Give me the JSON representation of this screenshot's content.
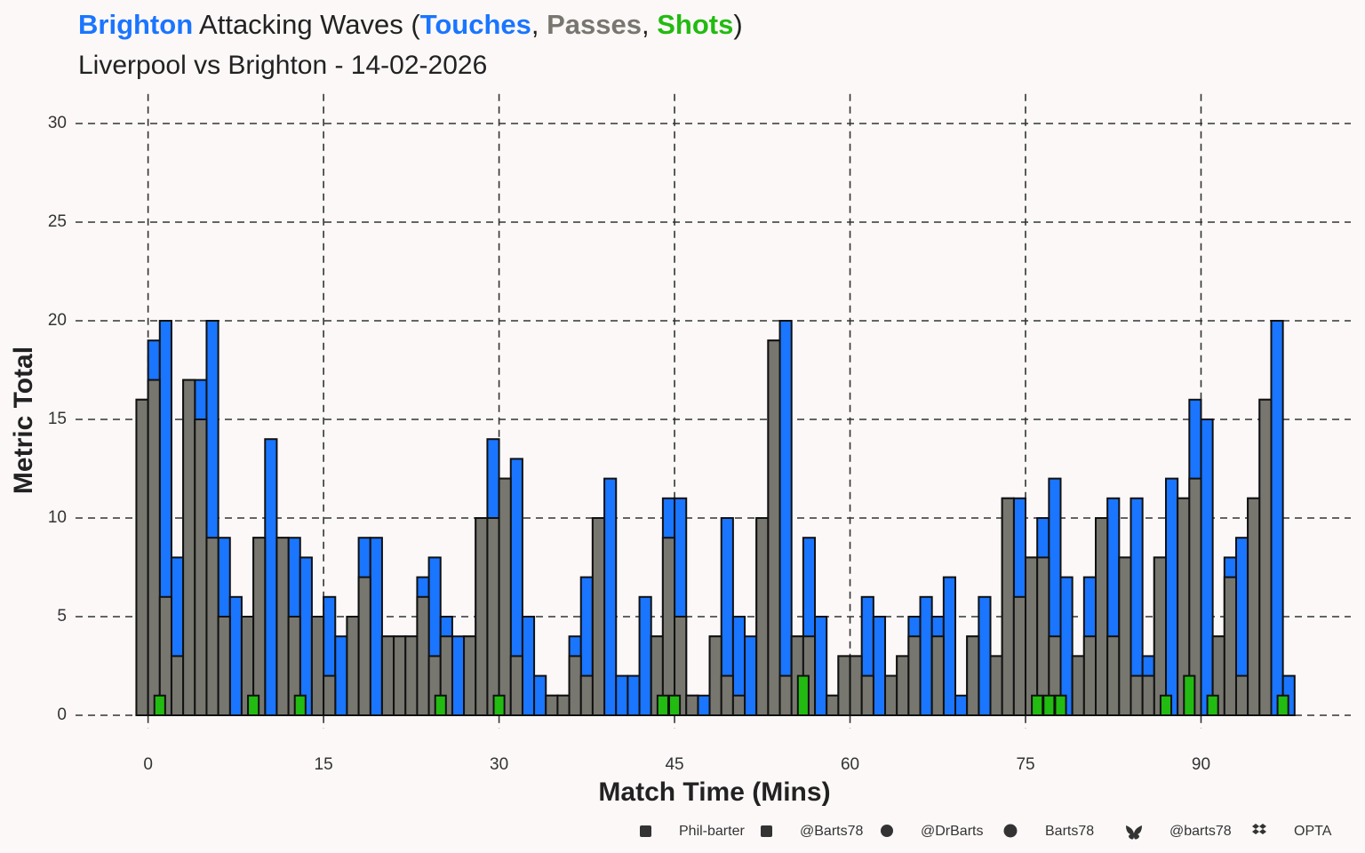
{
  "chart_data": {
    "type": "bar",
    "title": {
      "team": "Brighton",
      "team_color": "#1a75ff",
      "middle": " Attacking Waves (",
      "sep": ", ",
      "close": ")"
    },
    "subtitle": "Liverpool vs Brighton - 14-02-2026",
    "x_label": "Match Time (Mins)",
    "y_label": "Metric Total",
    "xlim": [
      -6.2,
      102.8
    ],
    "xticks": [
      0,
      15,
      30,
      45,
      60,
      75,
      90
    ],
    "ylim": [
      -1.5,
      31.5
    ],
    "yticks": [
      0,
      5,
      10,
      15,
      20,
      25,
      30
    ],
    "grid": true,
    "series": [
      {
        "name": "Touches",
        "color": "#1a75ff",
        "x": [
          -0.5,
          0.5,
          1.5,
          2.5,
          3.5,
          4.5,
          5.5,
          6.5,
          7.5,
          8.5,
          9.5,
          10.5,
          11.5,
          12.5,
          13.5,
          14.5,
          15.5,
          16.5,
          17.5,
          18.5,
          19.5,
          20.5,
          21.5,
          22.5,
          23.5,
          24.5,
          25.5,
          26.5,
          27.5,
          28.5,
          29.5,
          30.5,
          31.5,
          32.5,
          33.5,
          34.5,
          35.5,
          36.5,
          37.5,
          38.5,
          39.5,
          40.5,
          41.5,
          42.5,
          43.5,
          44.5,
          45.5,
          46.5,
          47.5,
          48.5,
          49.5,
          50.5,
          51.5,
          52.5,
          53.5,
          54.5,
          55.5,
          56.5,
          57.5,
          58.5,
          59.5,
          60.5,
          61.5,
          62.5,
          63.5,
          64.5,
          65.5,
          66.5,
          67.5,
          68.5,
          69.5,
          70.5,
          71.5,
          72.5,
          73.5,
          74.5,
          75.5,
          76.5,
          77.5,
          78.5,
          79.5,
          80.5,
          81.5,
          82.5,
          83.5,
          84.5,
          85.5,
          86.5,
          87.5,
          88.5,
          89.5,
          90.5,
          91.5,
          92.5,
          93.5,
          94.5,
          95.5,
          96.5,
          97.5
        ],
        "values": [
          16,
          19,
          20,
          8,
          17,
          17,
          20,
          9,
          6,
          5,
          9,
          14,
          9,
          9,
          8,
          5,
          6,
          4,
          5,
          9,
          9,
          4,
          4,
          4,
          7,
          8,
          5,
          4,
          4,
          10,
          14,
          12,
          13,
          5,
          2,
          1,
          1,
          4,
          7,
          10,
          12,
          2,
          2,
          6,
          4,
          11,
          11,
          1,
          1,
          4,
          10,
          5,
          4,
          10,
          19,
          20,
          4,
          9,
          5,
          1,
          3,
          3,
          6,
          5,
          2,
          3,
          5,
          6,
          5,
          7,
          1,
          4,
          6,
          3,
          11,
          11,
          8,
          10,
          12,
          7,
          3,
          7,
          10,
          11,
          8,
          11,
          3,
          8,
          12,
          11,
          16,
          15,
          4,
          8,
          9,
          11,
          16,
          20,
          2
        ]
      },
      {
        "name": "Passes",
        "color": "#777770",
        "x": [
          -0.5,
          0.5,
          1.5,
          2.5,
          3.5,
          4.5,
          5.5,
          6.5,
          7.5,
          8.5,
          9.5,
          10.5,
          11.5,
          12.5,
          13.5,
          14.5,
          15.5,
          16.5,
          17.5,
          18.5,
          19.5,
          20.5,
          21.5,
          22.5,
          23.5,
          24.5,
          25.5,
          26.5,
          27.5,
          28.5,
          29.5,
          30.5,
          31.5,
          32.5,
          33.5,
          34.5,
          35.5,
          36.5,
          37.5,
          38.5,
          39.5,
          40.5,
          41.5,
          42.5,
          43.5,
          44.5,
          45.5,
          46.5,
          47.5,
          48.5,
          49.5,
          50.5,
          51.5,
          52.5,
          53.5,
          54.5,
          55.5,
          56.5,
          57.5,
          58.5,
          59.5,
          60.5,
          61.5,
          62.5,
          63.5,
          64.5,
          65.5,
          66.5,
          67.5,
          68.5,
          69.5,
          70.5,
          71.5,
          72.5,
          73.5,
          74.5,
          75.5,
          76.5,
          77.5,
          78.5,
          79.5,
          80.5,
          81.5,
          82.5,
          83.5,
          84.5,
          85.5,
          86.5,
          87.5,
          88.5,
          89.5,
          90.5,
          91.5,
          92.5,
          93.5,
          94.5,
          95.5,
          96.5,
          97.5
        ],
        "values": [
          16,
          17,
          6,
          3,
          17,
          15,
          9,
          5,
          0,
          5,
          9,
          0,
          9,
          5,
          0,
          5,
          2,
          0,
          5,
          7,
          0,
          4,
          4,
          4,
          6,
          3,
          4,
          0,
          4,
          10,
          10,
          12,
          3,
          0,
          0,
          1,
          1,
          3,
          2,
          10,
          0,
          0,
          0,
          0,
          4,
          9,
          5,
          1,
          0,
          4,
          2,
          1,
          0,
          10,
          19,
          2,
          4,
          4,
          0,
          1,
          3,
          3,
          2,
          0,
          2,
          3,
          4,
          0,
          4,
          0,
          0,
          4,
          0,
          3,
          11,
          6,
          8,
          8,
          4,
          0,
          3,
          4,
          10,
          4,
          8,
          2,
          2,
          8,
          0,
          11,
          12,
          0,
          4,
          7,
          2,
          11,
          16,
          0,
          0
        ]
      },
      {
        "name": "Shots",
        "color": "#22bb11",
        "x": [
          1,
          9,
          13,
          25,
          30,
          44,
          45,
          56,
          76,
          77,
          78,
          87,
          89,
          91,
          97
        ],
        "values": [
          1,
          1,
          1,
          1,
          1,
          1,
          1,
          2,
          1,
          1,
          1,
          1,
          2,
          1,
          1
        ]
      }
    ],
    "credits": [
      "Phil-barter",
      "@Barts78",
      "@DrBarts",
      "Barts78",
      "@barts78",
      "OPTA"
    ]
  }
}
